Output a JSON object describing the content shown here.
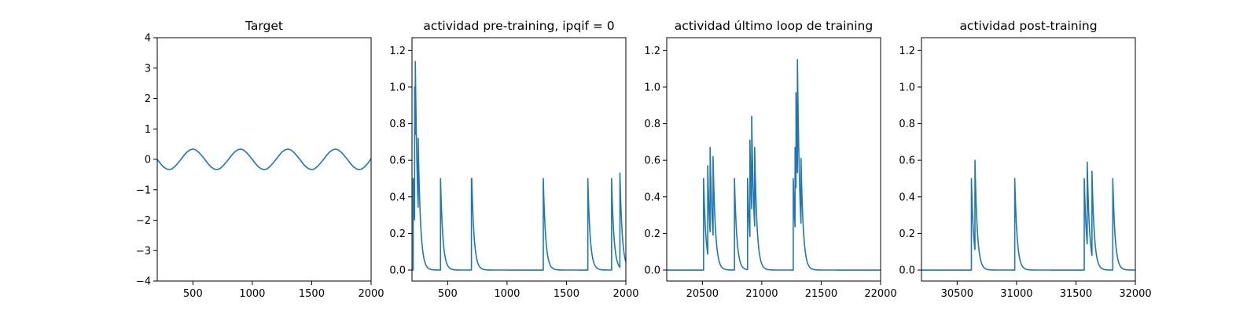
{
  "colors": {
    "series": "#1f77b4",
    "axes": "#000000",
    "background": "#ffffff"
  },
  "chart_data": [
    {
      "type": "line",
      "title": "Target",
      "xlabel": "",
      "ylabel": "",
      "xlim": [
        200,
        2000
      ],
      "ylim": [
        -4,
        4
      ],
      "xticks": [
        500,
        1000,
        1500,
        2000
      ],
      "yticks": [
        -4,
        -3,
        -2,
        -1,
        0,
        1,
        2,
        3,
        4
      ],
      "grid": false,
      "series": [
        {
          "x": [
            200,
            225,
            250,
            275,
            300,
            325,
            350,
            375,
            400,
            425,
            450,
            475,
            500,
            525,
            550,
            575,
            600,
            625,
            650,
            675,
            700,
            725,
            750,
            775,
            800,
            825,
            850,
            875,
            900,
            925,
            950,
            975,
            1000,
            1025,
            1050,
            1075,
            1100,
            1125,
            1150,
            1175,
            1200,
            1225,
            1250,
            1275,
            1300,
            1325,
            1350,
            1375,
            1400,
            1425,
            1450,
            1475,
            1500,
            1525,
            1550,
            1575,
            1600,
            1625,
            1650,
            1675,
            1700,
            1725,
            1750,
            1775,
            1800,
            1825,
            1850,
            1875,
            1900,
            1925,
            1950,
            1975,
            2000
          ],
          "y": [
            0,
            -0.13,
            -0.24,
            -0.31,
            -0.34,
            -0.31,
            -0.23,
            -0.12,
            0,
            0.13,
            0.24,
            0.31,
            0.34,
            0.31,
            0.23,
            0.12,
            0,
            -0.13,
            -0.24,
            -0.31,
            -0.34,
            -0.31,
            -0.23,
            -0.12,
            0,
            0.13,
            0.24,
            0.31,
            0.34,
            0.31,
            0.23,
            0.12,
            0,
            -0.13,
            -0.24,
            -0.31,
            -0.34,
            -0.31,
            -0.23,
            -0.12,
            0,
            0.13,
            0.24,
            0.31,
            0.34,
            0.31,
            0.23,
            0.12,
            0,
            -0.13,
            -0.24,
            -0.31,
            -0.34,
            -0.31,
            -0.23,
            -0.12,
            0,
            0.13,
            0.24,
            0.31,
            0.34,
            0.31,
            0.23,
            0.12,
            0,
            -0.13,
            -0.24,
            -0.31,
            -0.34,
            -0.31,
            -0.23,
            -0.12,
            0.03
          ]
        }
      ]
    },
    {
      "type": "line",
      "title": "actividad pre-training, ipqif = 0",
      "xlabel": "",
      "ylabel": "",
      "xlim": [
        200,
        2000
      ],
      "ylim": [
        -0.06,
        1.27
      ],
      "xticks": [
        500,
        1000,
        1500,
        2000
      ],
      "yticks": [
        0.0,
        0.2,
        0.4,
        0.6,
        0.8,
        1.0,
        1.2
      ],
      "ytick_labels": [
        "0.0",
        "0.2",
        "0.4",
        "0.6",
        "0.8",
        "1.0",
        "1.2"
      ],
      "grid": false,
      "spikes": [
        {
          "t": 210,
          "h": 0.5
        },
        {
          "t": 222,
          "h": 1.0
        },
        {
          "t": 228,
          "h": 1.14
        },
        {
          "t": 252,
          "h": 0.72
        },
        {
          "t": 440,
          "h": 0.5
        },
        {
          "t": 700,
          "h": 0.5
        },
        {
          "t": 703,
          "h": 0.5
        },
        {
          "t": 1305,
          "h": 0.5
        },
        {
          "t": 1680,
          "h": 0.5
        },
        {
          "t": 1880,
          "h": 0.5
        },
        {
          "t": 1950,
          "h": 0.53
        }
      ],
      "decay_tau": 20
    },
    {
      "type": "line",
      "title": "actividad último loop de training",
      "xlabel": "",
      "ylabel": "",
      "xlim": [
        20200,
        22000
      ],
      "ylim": [
        -0.06,
        1.27
      ],
      "xticks": [
        20500,
        21000,
        21500,
        22000
      ],
      "yticks": [
        0.0,
        0.2,
        0.4,
        0.6,
        0.8,
        1.0,
        1.2
      ],
      "ytick_labels": [
        "0.0",
        "0.2",
        "0.4",
        "0.6",
        "0.8",
        "1.0",
        "1.2"
      ],
      "grid": false,
      "spikes": [
        {
          "t": 20510,
          "h": 0.5
        },
        {
          "t": 20545,
          "h": 0.57
        },
        {
          "t": 20565,
          "h": 0.67
        },
        {
          "t": 20590,
          "h": 0.62
        },
        {
          "t": 20770,
          "h": 0.5
        },
        {
          "t": 20880,
          "h": 0.5
        },
        {
          "t": 20900,
          "h": 0.71
        },
        {
          "t": 20915,
          "h": 0.84
        },
        {
          "t": 20940,
          "h": 0.67
        },
        {
          "t": 21265,
          "h": 0.5
        },
        {
          "t": 21280,
          "h": 0.67
        },
        {
          "t": 21288,
          "h": 0.97
        },
        {
          "t": 21300,
          "h": 1.15
        },
        {
          "t": 21330,
          "h": 0.61
        }
      ],
      "decay_tau": 20
    },
    {
      "type": "line",
      "title": "actividad post-training",
      "xlabel": "",
      "ylabel": "",
      "xlim": [
        30200,
        32000
      ],
      "ylim": [
        -0.06,
        1.27
      ],
      "xticks": [
        30500,
        31000,
        31500,
        32000
      ],
      "yticks": [
        0.0,
        0.2,
        0.4,
        0.6,
        0.8,
        1.0,
        1.2
      ],
      "ytick_labels": [
        "0.0",
        "0.2",
        "0.4",
        "0.6",
        "0.8",
        "1.0",
        "1.2"
      ],
      "grid": false,
      "spikes": [
        {
          "t": 30620,
          "h": 0.5
        },
        {
          "t": 30650,
          "h": 0.6
        },
        {
          "t": 30985,
          "h": 0.5
        },
        {
          "t": 31570,
          "h": 0.5
        },
        {
          "t": 31595,
          "h": 0.59
        },
        {
          "t": 31635,
          "h": 0.54
        },
        {
          "t": 31810,
          "h": 0.5
        }
      ],
      "decay_tau": 20
    }
  ]
}
